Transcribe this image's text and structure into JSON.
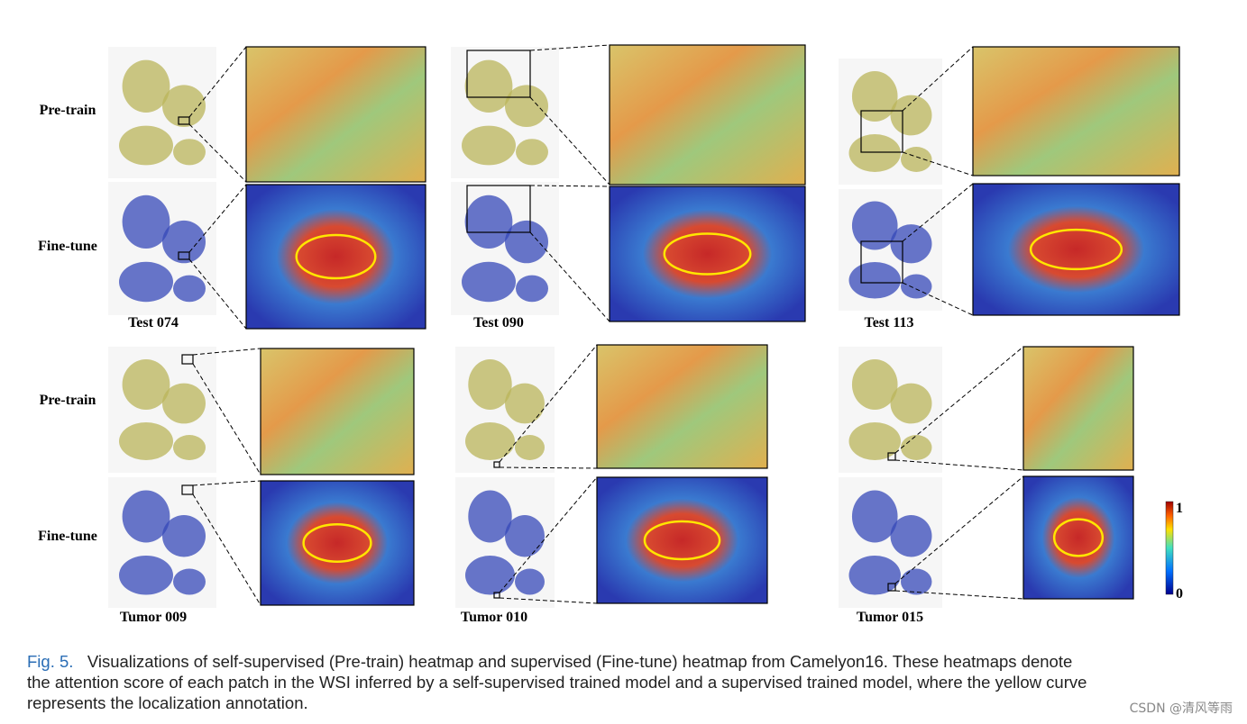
{
  "rows": [
    {
      "labels": [
        "Pre-train",
        "Fine-tune"
      ],
      "panels": [
        "Test 074",
        "Test 090",
        "Test 113"
      ]
    },
    {
      "labels": [
        "Pre-train",
        "Fine-tune"
      ],
      "panels": [
        "Tumor 009",
        "Tumor 010",
        "Tumor 015"
      ]
    }
  ],
  "colorbar": {
    "max": 1,
    "min": 0
  },
  "caption": {
    "label": "Fig. 5.",
    "lines": [
      "Visualizations of self-supervised (Pre-train) heatmap and supervised (Fine-tune) heatmap from Camelyon16. These heatmaps denote",
      "the attention score of each patch in the WSI inferred by a self-supervised trained model and a supervised trained model, where the yellow curve",
      "represents the localization annotation."
    ]
  },
  "watermark": "CSDN @清风等雨"
}
